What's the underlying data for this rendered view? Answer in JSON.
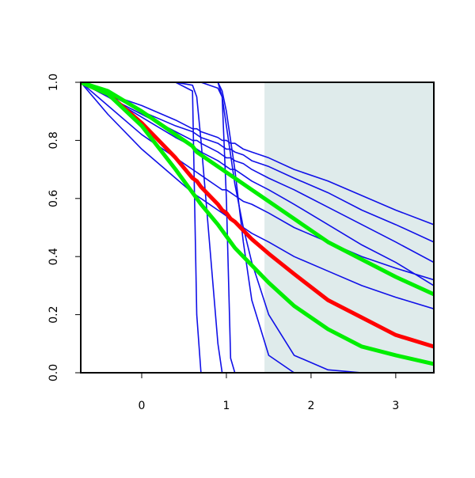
{
  "chart_data": {
    "type": "line",
    "x": [
      -0.72,
      -0.4,
      0,
      0.4,
      0.6,
      0.65,
      0.7,
      0.9,
      0.95,
      1,
      1.05,
      1.1,
      1.2,
      1.3,
      1.5,
      1.8,
      2.2,
      2.6,
      3,
      3.45
    ],
    "xlim": [
      -0.72,
      3.45
    ],
    "xticks": [
      0,
      1,
      2,
      3
    ],
    "ylim": [
      0,
      1
    ],
    "yticks": [
      {
        "value": 0,
        "label": "0.0"
      },
      0.2,
      0.4,
      0.6,
      0.8,
      {
        "value": 1,
        "label": "1.0"
      }
    ],
    "shaded_region": {
      "x_from": 1.45,
      "color": "#dfebeb"
    },
    "series": [
      {
        "color": "#1010e8",
        "values": [
          1,
          0.96,
          0.92,
          0.87,
          0.84,
          0.84,
          0.83,
          0.81,
          0.8,
          0.8,
          0.79,
          0.79,
          0.77,
          0.76,
          0.74,
          0.7,
          0.66,
          0.61,
          0.56,
          0.51
        ]
      },
      {
        "color": "#1010e8",
        "values": [
          1,
          0.96,
          0.9,
          0.85,
          0.83,
          0.82,
          0.81,
          0.79,
          0.78,
          0.77,
          0.77,
          0.76,
          0.75,
          0.73,
          0.71,
          0.67,
          0.62,
          0.56,
          0.51,
          0.45
        ]
      },
      {
        "color": "#1010e8",
        "values": [
          1,
          0.95,
          0.89,
          0.83,
          0.8,
          0.8,
          0.79,
          0.76,
          0.75,
          0.74,
          0.74,
          0.73,
          0.72,
          0.7,
          0.67,
          0.63,
          0.57,
          0.51,
          0.45,
          0.38
        ]
      },
      {
        "color": "#1010e8",
        "values": [
          1,
          0.92,
          0.82,
          0.74,
          0.7,
          0.69,
          0.68,
          0.64,
          0.63,
          0.63,
          0.62,
          0.61,
          0.59,
          0.58,
          0.55,
          0.5,
          0.45,
          0.4,
          0.36,
          0.32
        ]
      },
      {
        "color": "#1010e8",
        "values": [
          1,
          0.95,
          0.88,
          0.81,
          0.78,
          0.77,
          0.76,
          0.73,
          0.72,
          0.71,
          0.7,
          0.7,
          0.68,
          0.66,
          0.63,
          0.58,
          0.51,
          0.44,
          0.38,
          0.3
        ]
      },
      {
        "color": "#1010e8",
        "values": [
          1,
          0.89,
          0.77,
          0.67,
          0.62,
          0.61,
          0.6,
          0.56,
          0.55,
          0.54,
          0.53,
          0.52,
          0.5,
          0.48,
          0.45,
          0.4,
          0.35,
          0.3,
          0.26,
          0.22
        ]
      },
      {
        "color": "#1010e8",
        "values": [
          1,
          1,
          1,
          1,
          0.97,
          0.2,
          0,
          0,
          0,
          0,
          0,
          0,
          0,
          0,
          0,
          0,
          0,
          0,
          0,
          0
        ]
      },
      {
        "color": "#1010e8",
        "values": [
          1,
          1,
          1,
          1,
          0.99,
          0.95,
          0.8,
          0.1,
          0,
          0,
          0,
          0,
          0,
          0,
          0,
          0,
          0,
          0,
          0,
          0
        ]
      },
      {
        "color": "#1010e8",
        "values": [
          1,
          1,
          1,
          1,
          1,
          1,
          1,
          1,
          0.95,
          0.6,
          0.05,
          0,
          0,
          0,
          0,
          0,
          0,
          0,
          0,
          0
        ]
      },
      {
        "color": "#1010e8",
        "values": [
          1,
          1,
          1,
          1,
          1,
          1,
          1,
          1,
          0.97,
          0.9,
          0.8,
          0.7,
          0.45,
          0.25,
          0.06,
          0,
          0,
          0,
          0,
          0
        ]
      },
      {
        "color": "#1010e8",
        "values": [
          1,
          1,
          1,
          1,
          1,
          1,
          1,
          0.98,
          0.95,
          0.85,
          0.75,
          0.65,
          0.5,
          0.38,
          0.2,
          0.06,
          0.01,
          0,
          0,
          0
        ]
      },
      {
        "color": "#ff0000",
        "values": [
          1,
          0.96,
          0.86,
          0.74,
          0.67,
          0.66,
          0.64,
          0.58,
          0.56,
          0.55,
          0.53,
          0.52,
          0.49,
          0.46,
          0.41,
          0.34,
          0.25,
          0.19,
          0.13,
          0.09
        ]
      },
      {
        "color": "#00ee00",
        "values": [
          1,
          0.97,
          0.9,
          0.82,
          0.78,
          0.76,
          0.75,
          0.71,
          0.7,
          0.69,
          0.68,
          0.67,
          0.65,
          0.63,
          0.59,
          0.53,
          0.45,
          0.39,
          0.33,
          0.27
        ]
      },
      {
        "color": "#00ee00",
        "values": [
          1,
          0.96,
          0.85,
          0.7,
          0.62,
          0.6,
          0.58,
          0.51,
          0.49,
          0.47,
          0.45,
          0.43,
          0.4,
          0.37,
          0.31,
          0.23,
          0.15,
          0.09,
          0.06,
          0.03
        ]
      }
    ]
  }
}
